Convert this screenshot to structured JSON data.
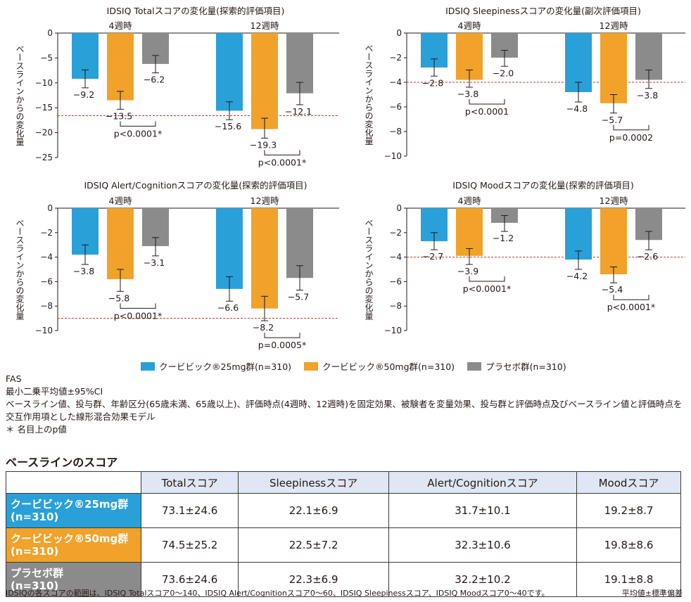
{
  "colors": {
    "blue": "#2aa0d8",
    "orange": "#f0a22b",
    "gray": "#8b8b8b",
    "refline": "#c0392b",
    "header_bg": "#dfe7f4"
  },
  "common": {
    "ylabel": "ベースラインからの変化量",
    "timepoints": [
      "4週時",
      "12週時"
    ]
  },
  "chart_data": [
    {
      "type": "bar",
      "title": "IDSIQ Totalスコアの変化量(探索的評価項目)",
      "ylabel": "ベースラインからの変化量",
      "ylim": [
        -25,
        0
      ],
      "yticks": [
        0,
        -5,
        -10,
        -15,
        -20,
        -25
      ],
      "ytick_labels": [
        "0",
        "−5",
        "−10",
        "−15",
        "−20",
        "−25"
      ],
      "ref_line": -16.6,
      "categories": [
        "4週時",
        "12週時"
      ],
      "series": [
        {
          "name": "クービビック®25mg群",
          "values": [
            -9.2,
            -15.6
          ],
          "ci_low": [
            -11.0,
            -17.4
          ],
          "ci_high": [
            -7.4,
            -13.8
          ],
          "labels": [
            "−9.2",
            "−15.6"
          ]
        },
        {
          "name": "クービビック®50mg群",
          "values": [
            -13.5,
            -19.3
          ],
          "ci_low": [
            -15.3,
            -21.1
          ],
          "ci_high": [
            -11.7,
            -17.1
          ],
          "labels": [
            "−13.5",
            "−19.3"
          ]
        },
        {
          "name": "プラセボ群",
          "values": [
            -6.2,
            -12.1
          ],
          "ci_low": [
            -8.0,
            -14.4
          ],
          "ci_high": [
            -4.5,
            -9.9
          ],
          "labels": [
            "−6.2",
            "−12.1"
          ]
        }
      ],
      "comparisons": [
        {
          "timepoint": 0,
          "between": [
            1,
            2
          ],
          "label": "p<0.0001*"
        },
        {
          "timepoint": 1,
          "between": [
            1,
            2
          ],
          "label": "p<0.0001*"
        }
      ]
    },
    {
      "type": "bar",
      "title": "IDSIQ Sleepinessスコアの変化量(副次評価項目)",
      "ylabel": "ベースラインからの変化量",
      "ylim": [
        -10,
        0
      ],
      "yticks": [
        0,
        -2,
        -4,
        -6,
        -8,
        -10
      ],
      "ytick_labels": [
        "0",
        "−2",
        "−4",
        "−6",
        "−8",
        "−10"
      ],
      "ref_line": -4.0,
      "categories": [
        "4週時",
        "12週時"
      ],
      "series": [
        {
          "name": "クービビック®25mg群",
          "values": [
            -2.8,
            -4.8
          ],
          "ci_low": [
            -3.5,
            -5.6
          ],
          "ci_high": [
            -2.1,
            -4.0
          ],
          "labels": [
            "−2.8",
            "−4.8"
          ]
        },
        {
          "name": "クービビック®50mg群",
          "values": [
            -3.8,
            -5.7
          ],
          "ci_low": [
            -4.4,
            -6.5
          ],
          "ci_high": [
            -3.0,
            -5.0
          ],
          "labels": [
            "−3.8",
            "−5.7"
          ]
        },
        {
          "name": "プラセボ群",
          "values": [
            -2.0,
            -3.8
          ],
          "ci_low": [
            -2.7,
            -4.5
          ],
          "ci_high": [
            -1.4,
            -3.0
          ],
          "labels": [
            "−2.0",
            "−3.8"
          ]
        }
      ],
      "comparisons": [
        {
          "timepoint": 0,
          "between": [
            1,
            2
          ],
          "label": "p<0.0001"
        },
        {
          "timepoint": 1,
          "between": [
            1,
            2
          ],
          "label": "p=0.0002"
        }
      ]
    },
    {
      "type": "bar",
      "title": "IDSIQ Alert/Cognitionスコアの変化量(探索的評価項目)",
      "ylabel": "ベースラインからの変化量",
      "ylim": [
        -10,
        0
      ],
      "yticks": [
        0,
        -2,
        -4,
        -6,
        -8,
        -10
      ],
      "ytick_labels": [
        "0",
        "−2",
        "−4",
        "−6",
        "−8",
        "−10"
      ],
      "ref_line": -9.0,
      "categories": [
        "4週時",
        "12週時"
      ],
      "series": [
        {
          "name": "クービビック®25mg群",
          "values": [
            -3.8,
            -6.6
          ],
          "ci_low": [
            -4.6,
            -7.6
          ],
          "ci_high": [
            -3.0,
            -5.6
          ],
          "labels": [
            "−3.8",
            "−6.6"
          ]
        },
        {
          "name": "クービビック®50mg群",
          "values": [
            -5.8,
            -8.2
          ],
          "ci_low": [
            -6.8,
            -9.2
          ],
          "ci_high": [
            -5.0,
            -7.2
          ],
          "labels": [
            "−5.8",
            "−8.2"
          ]
        },
        {
          "name": "プラセボ群",
          "values": [
            -3.1,
            -5.7
          ],
          "ci_low": [
            -3.9,
            -6.7
          ],
          "ci_high": [
            -2.4,
            -4.7
          ],
          "labels": [
            "−3.1",
            "−5.7"
          ]
        }
      ],
      "comparisons": [
        {
          "timepoint": 0,
          "between": [
            1,
            2
          ],
          "label": "p<0.0001*"
        },
        {
          "timepoint": 1,
          "between": [
            1,
            2
          ],
          "label": "p=0.0005*"
        }
      ]
    },
    {
      "type": "bar",
      "title": "IDSIQ Moodスコアの変化量(探索的評価項目)",
      "ylabel": "ベースラインからの変化量",
      "ylim": [
        -10,
        0
      ],
      "yticks": [
        0,
        -2,
        -4,
        -6,
        -8,
        -10
      ],
      "ytick_labels": [
        "0",
        "−2",
        "−4",
        "−6",
        "−8",
        "−10"
      ],
      "ref_line": -4.0,
      "categories": [
        "4週時",
        "12週時"
      ],
      "series": [
        {
          "name": "クービビック®25mg群",
          "values": [
            -2.7,
            -4.2
          ],
          "ci_low": [
            -3.4,
            -5.0
          ],
          "ci_high": [
            -2.0,
            -3.5
          ],
          "labels": [
            "−2.7",
            "−4.2"
          ]
        },
        {
          "name": "クービビック®50mg群",
          "values": [
            -3.9,
            -5.4
          ],
          "ci_low": [
            -4.6,
            -6.1
          ],
          "ci_high": [
            -3.3,
            -4.8
          ],
          "labels": [
            "−3.9",
            "−5.4"
          ]
        },
        {
          "name": "プラセボ群",
          "values": [
            -1.2,
            -2.6
          ],
          "ci_low": [
            -1.9,
            -3.4
          ],
          "ci_high": [
            -0.6,
            -1.9
          ],
          "labels": [
            "−1.2",
            "−2.6"
          ]
        }
      ],
      "comparisons": [
        {
          "timepoint": 0,
          "between": [
            1,
            2
          ],
          "label": "p<0.0001*"
        },
        {
          "timepoint": 1,
          "between": [
            1,
            2
          ],
          "label": "p<0.0001*"
        }
      ]
    }
  ],
  "legend": [
    {
      "label": "クービビック®25mg群(n=310)"
    },
    {
      "label": "クービビック®50mg群(n=310)"
    },
    {
      "label": "プラセボ群(n=310)"
    }
  ],
  "notes": {
    "line1": "FAS",
    "line2": "最小二乗平均値±95%CI",
    "line3": "ベースライン値、投与群、年齢区分(65歳未満、65歳以上)、評価時点(4週時、12週時)を固定効果、被験者を変量効果、投与群と評価時点及びベースライン値と評価時点を交互作用項とした線形混合効果モデル",
    "line4": "＊ 名目上のp値"
  },
  "baseline": {
    "title": "ベースラインのスコア",
    "columns": [
      "",
      "Totalスコア",
      "Sleepinessスコア",
      "Alert/Cognitionスコア",
      "Moodスコア"
    ],
    "rows": [
      {
        "group": "クービビック®25mg群",
        "n": "(n=310)",
        "values": [
          "73.1±24.6",
          "22.1±6.9",
          "31.7±10.1",
          "19.2±8.7"
        ]
      },
      {
        "group": "クービビック®50mg群",
        "n": "(n=310)",
        "values": [
          "74.5±25.2",
          "22.5±7.2",
          "32.3±10.6",
          "19.8±8.6"
        ]
      },
      {
        "group": "プラセボ群",
        "n": "(n=310)",
        "values": [
          "73.6±24.6",
          "22.3±6.9",
          "32.2±10.2",
          "19.1±8.8"
        ]
      }
    ]
  },
  "footer": {
    "left": "IDSIQの各スコアの範囲は、IDSIQ Totalスコア0～140、IDSIQ Alert/Cognitionスコア0～60、IDSIQ Sleepinessスコア、IDSIQ Moodスコア0～40です。",
    "right": "平均値±標準偏差"
  }
}
